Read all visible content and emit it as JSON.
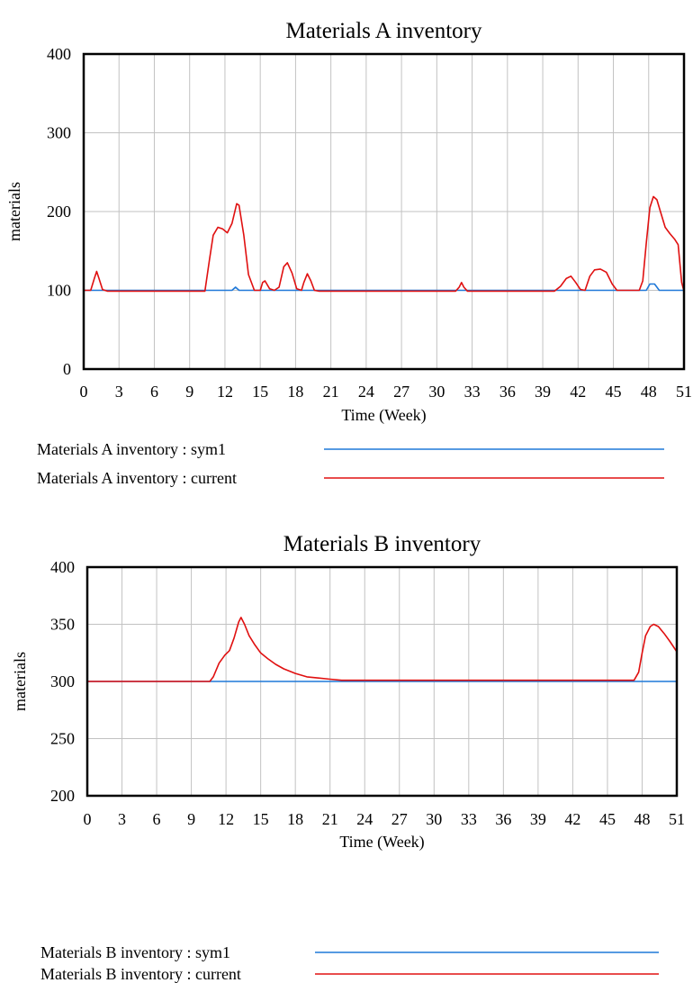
{
  "chart_data": [
    {
      "type": "line",
      "title": "Materials A inventory",
      "xlabel": "Time (Week)",
      "ylabel": "materials",
      "xlim": [
        0,
        51
      ],
      "ylim": [
        0,
        400
      ],
      "x_ticks": [
        "0",
        "3",
        "6",
        "9",
        "12",
        "15",
        "18",
        "21",
        "24",
        "27",
        "30",
        "33",
        "36",
        "39",
        "42",
        "45",
        "48",
        "51"
      ],
      "y_ticks": [
        "0",
        "100",
        "200",
        "300",
        "400"
      ],
      "grid": true,
      "legend_position": "bottom",
      "series": [
        {
          "name": "Materials A inventory : sym1",
          "color": "#1f78d8",
          "points": [
            [
              0,
              100
            ],
            [
              12.6,
              100
            ],
            [
              12.9,
              104
            ],
            [
              13.2,
              100
            ],
            [
              47.8,
              100
            ],
            [
              48.1,
              108
            ],
            [
              48.5,
              108
            ],
            [
              48.9,
              100
            ],
            [
              51,
              100
            ]
          ]
        },
        {
          "name": "Materials A inventory : current",
          "color": "#e01010",
          "points": [
            [
              0,
              100
            ],
            [
              0.6,
              100
            ],
            [
              0.9,
              115
            ],
            [
              1.1,
              124
            ],
            [
              1.3,
              115
            ],
            [
              1.6,
              101
            ],
            [
              2,
              99
            ],
            [
              3,
              99
            ],
            [
              9,
              99
            ],
            [
              10.3,
              99
            ],
            [
              10.7,
              140
            ],
            [
              11,
              170
            ],
            [
              11.4,
              180
            ],
            [
              11.8,
              178
            ],
            [
              12.2,
              173
            ],
            [
              12.6,
              185
            ],
            [
              13,
              210
            ],
            [
              13.2,
              208
            ],
            [
              13.6,
              170
            ],
            [
              14,
              120
            ],
            [
              14.5,
              100
            ],
            [
              15,
              100
            ],
            [
              15.2,
              110
            ],
            [
              15.4,
              112
            ],
            [
              15.8,
              102
            ],
            [
              16.2,
              100
            ],
            [
              16.6,
              104
            ],
            [
              17,
              130
            ],
            [
              17.3,
              135
            ],
            [
              17.7,
              122
            ],
            [
              18.1,
              102
            ],
            [
              18.5,
              100
            ],
            [
              18.7,
              110
            ],
            [
              19,
              121
            ],
            [
              19.3,
              112
            ],
            [
              19.6,
              100
            ],
            [
              20,
              99
            ],
            [
              31.6,
              99
            ],
            [
              31.9,
              104
            ],
            [
              32.1,
              110
            ],
            [
              32.3,
              104
            ],
            [
              32.6,
              99
            ],
            [
              40,
              99
            ],
            [
              40.5,
              105
            ],
            [
              41,
              115
            ],
            [
              41.4,
              118
            ],
            [
              41.8,
              110
            ],
            [
              42.2,
              101
            ],
            [
              42.6,
              100
            ],
            [
              43,
              118
            ],
            [
              43.4,
              126
            ],
            [
              43.9,
              127
            ],
            [
              44.4,
              123
            ],
            [
              44.9,
              108
            ],
            [
              45.3,
              100
            ],
            [
              47.2,
              100
            ],
            [
              47.5,
              112
            ],
            [
              47.8,
              160
            ],
            [
              48.1,
              205
            ],
            [
              48.4,
              219
            ],
            [
              48.7,
              215
            ],
            [
              49,
              200
            ],
            [
              49.4,
              180
            ],
            [
              49.8,
              172
            ],
            [
              50.2,
              165
            ],
            [
              50.5,
              158
            ],
            [
              50.8,
              110
            ],
            [
              51,
              99
            ]
          ]
        }
      ]
    },
    {
      "type": "line",
      "title": "Materials B inventory",
      "xlabel": "Time (Week)",
      "ylabel": "materials",
      "xlim": [
        0,
        51
      ],
      "ylim": [
        200,
        400
      ],
      "x_ticks": [
        "0",
        "3",
        "6",
        "9",
        "12",
        "15",
        "18",
        "21",
        "24",
        "27",
        "30",
        "33",
        "36",
        "39",
        "42",
        "45",
        "48",
        "51"
      ],
      "y_ticks": [
        "200",
        "250",
        "300",
        "350",
        "400"
      ],
      "grid": true,
      "legend_position": "bottom",
      "series": [
        {
          "name": "Materials B inventory : sym1",
          "color": "#1f78d8",
          "points": [
            [
              0,
              300
            ],
            [
              51,
              300
            ]
          ]
        },
        {
          "name": "Materials B inventory : current",
          "color": "#e01010",
          "points": [
            [
              0,
              300
            ],
            [
              10.6,
              300
            ],
            [
              10.9,
              304
            ],
            [
              11.4,
              316
            ],
            [
              11.9,
              323
            ],
            [
              12.3,
              327
            ],
            [
              12.7,
              338
            ],
            [
              13.1,
              352
            ],
            [
              13.3,
              356
            ],
            [
              13.6,
              350
            ],
            [
              14,
              340
            ],
            [
              14.5,
              332
            ],
            [
              15,
              325
            ],
            [
              15.6,
              320
            ],
            [
              16.3,
              315
            ],
            [
              17,
              311
            ],
            [
              18,
              307
            ],
            [
              19,
              304
            ],
            [
              20,
              303
            ],
            [
              21,
              302
            ],
            [
              22,
              301
            ],
            [
              23,
              301
            ],
            [
              47.3,
              301
            ],
            [
              47.7,
              308
            ],
            [
              48,
              325
            ],
            [
              48.3,
              340
            ],
            [
              48.7,
              348
            ],
            [
              49,
              350
            ],
            [
              49.4,
              348
            ],
            [
              49.9,
              342
            ],
            [
              50.4,
              335
            ],
            [
              51,
              326
            ]
          ]
        }
      ]
    }
  ]
}
